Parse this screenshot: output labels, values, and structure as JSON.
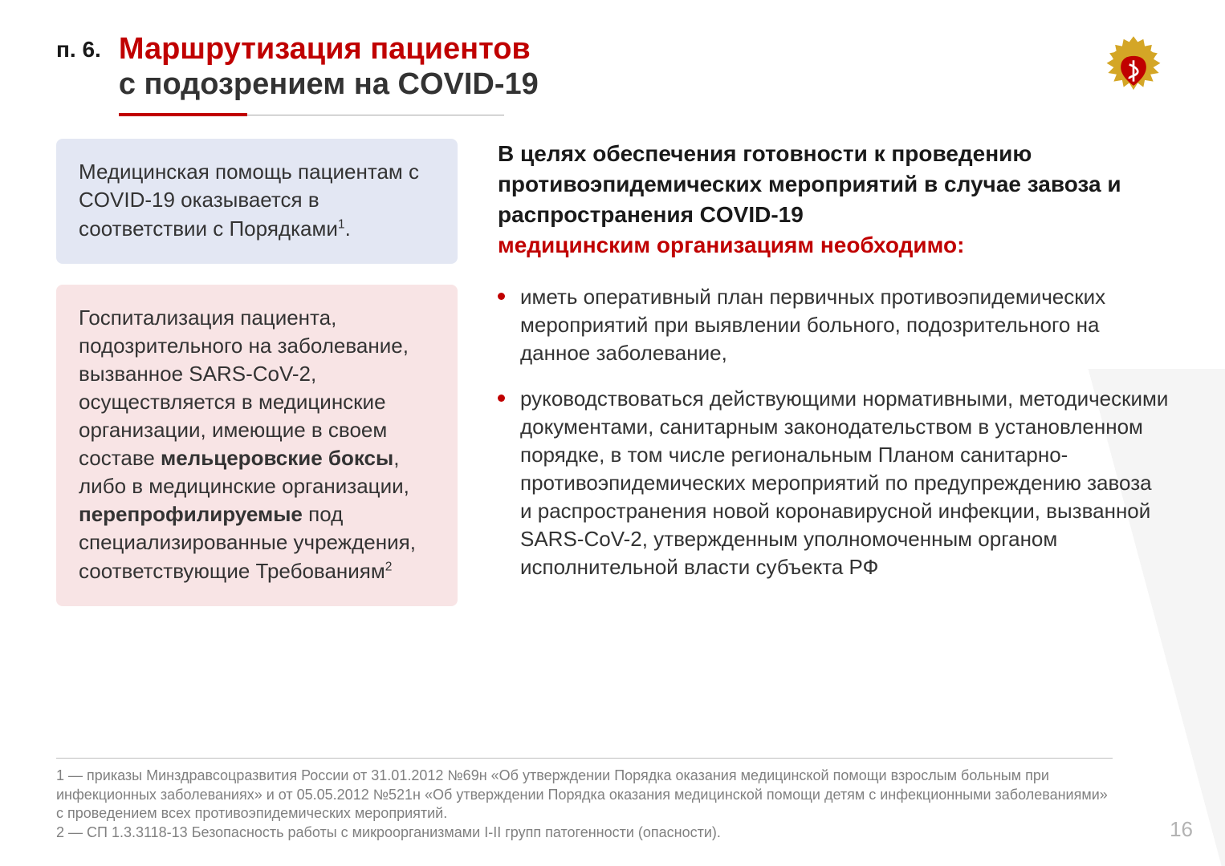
{
  "colors": {
    "accent": "#c00000",
    "text": "#333333",
    "muted": "#808080",
    "box_blue_bg": "#e3e7f3",
    "box_pink_bg": "#f8e4e5",
    "rule_grey": "#a6a6a6",
    "page_no": "#b3b3b3",
    "background": "#ffffff"
  },
  "typography": {
    "title_fontsize_pt": 28,
    "body_fontsize_pt": 20,
    "footnote_fontsize_pt": 13,
    "font_family": "Arial"
  },
  "header": {
    "section_no": "п. 6.",
    "title_line1": "Маршрутизация пациентов",
    "title_line2": "с подозрением на COVID-19"
  },
  "left": {
    "blue_box_html": "Медицинская помощь пациентам с COVID-19 оказывается в соответствии с Порядками<sup>1</sup>.",
    "pink_box_html": "Госпитализация пациента, подозрительного на заболевание, вызванное SARS-CoV-2, осуществляется в медицинские организации, имеющие в своем составе <b>мельцеровские боксы</b>, либо в медицинские организации, <b>перепрофилируемые</b> под специализированные учреждения, соответствующие Требованиям<sup>2</sup>"
  },
  "right": {
    "lead_plain": "В целях обеспечения готовности к проведению противоэпидемических мероприятий в случае завоза и распространения COVID-19",
    "lead_accent": "медицинским организациям необходимо:",
    "bullets": [
      "иметь оперативный план первичных противоэпидемических мероприятий при выявлении больного, подозрительного на данное заболевание,",
      "руководствоваться действующими нормативными, методическими документами, санитарным законодательством в установленном порядке, в том числе региональным Планом санитарно-противоэпидемических мероприятий по предупреждению завоза и распространения новой коронавирусной инфекции, вызванной SARS-CoV-2, утвержденным уполномоченным органом исполнительной власти субъекта РФ"
    ]
  },
  "footnotes": [
    "1 — приказы Минздравсоцразвития России от 31.01.2012 №69н «Об утверждении Порядка оказания медицинской помощи взрослым больным при инфекционных заболеваниях» и от 05.05.2012 №521н «Об утверждении Порядка оказания медицинской помощи детям с инфекционными заболеваниями» с проведением всех противоэпидемических мероприятий.",
    "2 — СП 1.3.3118-13 Безопасность работы с микроорганизмами I-II групп патогенности (опасности)."
  ],
  "page_number": "16",
  "logo": {
    "name": "minzdrav-emblem",
    "primary_color": "#d4a626",
    "shield_color": "#c00000"
  }
}
